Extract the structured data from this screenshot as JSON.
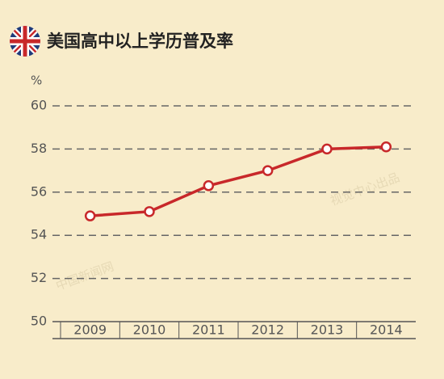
{
  "chart_data": {
    "type": "line",
    "title": "美国高中以上学历普及率",
    "y_label": "%",
    "categories": [
      "2009",
      "2010",
      "2011",
      "2012",
      "2013",
      "2014"
    ],
    "series": [
      {
        "name": "美国高中以上学历普及率",
        "color": "#c8282a",
        "values": [
          54.9,
          55.1,
          56.3,
          57.0,
          58.0,
          58.1
        ]
      }
    ],
    "ylim": [
      50,
      60
    ],
    "yticks": [
      50,
      52,
      54,
      56,
      58,
      60
    ],
    "grid": true,
    "watermarks": [
      "中国新闻网",
      "视觉中心出品"
    ]
  }
}
